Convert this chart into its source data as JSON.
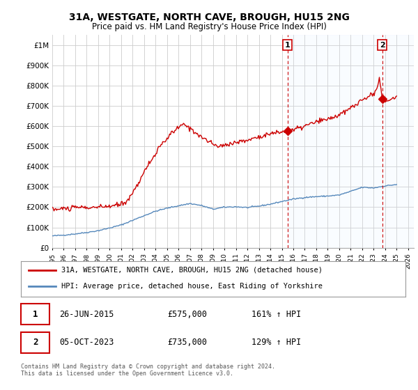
{
  "title": "31A, WESTGATE, NORTH CAVE, BROUGH, HU15 2NG",
  "subtitle": "Price paid vs. HM Land Registry's House Price Index (HPI)",
  "ylim": [
    0,
    1050000
  ],
  "yticks": [
    0,
    100000,
    200000,
    300000,
    400000,
    500000,
    600000,
    700000,
    800000,
    900000,
    1000000
  ],
  "ytick_labels": [
    "£0",
    "£100K",
    "£200K",
    "£300K",
    "£400K",
    "£500K",
    "£600K",
    "£700K",
    "£800K",
    "£900K",
    "£1M"
  ],
  "xlim_start": 1995.0,
  "xlim_end": 2026.5,
  "sale1_x": 2015.5,
  "sale1_y": 575000,
  "sale2_x": 2023.75,
  "sale2_y": 735000,
  "legend_line1": "31A, WESTGATE, NORTH CAVE, BROUGH, HU15 2NG (detached house)",
  "legend_line2": "HPI: Average price, detached house, East Riding of Yorkshire",
  "annotation1_date": "26-JUN-2015",
  "annotation1_price": "£575,000",
  "annotation1_hpi": "161% ↑ HPI",
  "annotation2_date": "05-OCT-2023",
  "annotation2_price": "£735,000",
  "annotation2_hpi": "129% ↑ HPI",
  "copyright": "Contains HM Land Registry data © Crown copyright and database right 2024.\nThis data is licensed under the Open Government Licence v3.0.",
  "line_color_red": "#cc0000",
  "line_color_blue": "#5588bb",
  "shade_color": "#ddeeff",
  "vline_color": "#cc0000",
  "background_color": "#ffffff",
  "grid_color": "#cccccc"
}
